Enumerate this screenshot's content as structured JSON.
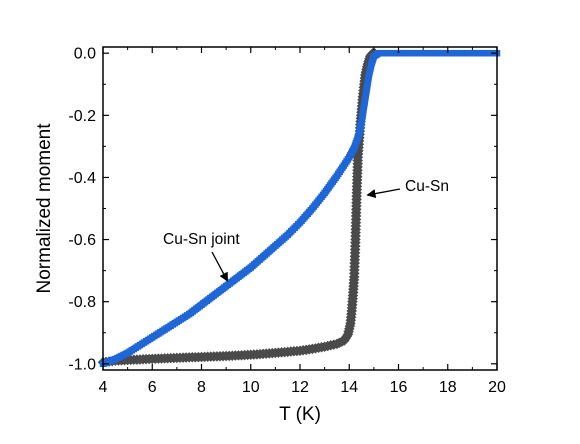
{
  "chart_data": {
    "type": "scatter",
    "xlabel": "T (K)",
    "ylabel": "Normalized moment",
    "xlim": [
      4,
      20
    ],
    "ylim": [
      -1.02,
      0.02
    ],
    "x_ticks": [
      4,
      6,
      8,
      10,
      12,
      14,
      16,
      18,
      20
    ],
    "y_ticks": [
      0.0,
      -0.2,
      -0.4,
      -0.6,
      -0.8,
      -1.0
    ],
    "y_tick_labels": [
      "0.0",
      "-0.2",
      "-0.4",
      "-0.6",
      "-0.8",
      "-1.0"
    ],
    "grid": false,
    "legend": "none",
    "series": [
      {
        "name": "Cu-Sn joint",
        "color": "#1f66d6",
        "marker": "square",
        "points": [
          [
            4.0,
            -1.0
          ],
          [
            4.5,
            -0.985
          ],
          [
            5.0,
            -0.965
          ],
          [
            5.5,
            -0.94
          ],
          [
            6.0,
            -0.915
          ],
          [
            6.5,
            -0.89
          ],
          [
            7.0,
            -0.865
          ],
          [
            7.5,
            -0.84
          ],
          [
            8.0,
            -0.81
          ],
          [
            8.5,
            -0.78
          ],
          [
            9.0,
            -0.75
          ],
          [
            9.5,
            -0.72
          ],
          [
            10.0,
            -0.69
          ],
          [
            10.5,
            -0.655
          ],
          [
            11.0,
            -0.62
          ],
          [
            11.5,
            -0.585
          ],
          [
            12.0,
            -0.545
          ],
          [
            12.5,
            -0.5
          ],
          [
            13.0,
            -0.45
          ],
          [
            13.5,
            -0.395
          ],
          [
            14.0,
            -0.335
          ],
          [
            14.2,
            -0.305
          ],
          [
            14.4,
            -0.26
          ],
          [
            14.5,
            -0.22
          ],
          [
            14.6,
            -0.17
          ],
          [
            14.7,
            -0.12
          ],
          [
            14.8,
            -0.07
          ],
          [
            14.9,
            -0.035
          ],
          [
            15.0,
            -0.01
          ],
          [
            15.2,
            0.0
          ],
          [
            15.5,
            0.0
          ],
          [
            16.0,
            0.0
          ],
          [
            17.0,
            0.0
          ],
          [
            18.0,
            0.0
          ],
          [
            19.0,
            0.0
          ],
          [
            20.0,
            0.0
          ]
        ]
      },
      {
        "name": "Cu-Sn",
        "color": "#4a4a4a",
        "marker": "diamond",
        "points": [
          [
            4.0,
            -0.995
          ],
          [
            4.5,
            -0.99
          ],
          [
            5.0,
            -0.988
          ],
          [
            5.5,
            -0.986
          ],
          [
            6.0,
            -0.984
          ],
          [
            7.0,
            -0.981
          ],
          [
            8.0,
            -0.978
          ],
          [
            9.0,
            -0.975
          ],
          [
            10.0,
            -0.971
          ],
          [
            11.0,
            -0.965
          ],
          [
            12.0,
            -0.958
          ],
          [
            12.5,
            -0.952
          ],
          [
            13.0,
            -0.945
          ],
          [
            13.5,
            -0.936
          ],
          [
            13.8,
            -0.925
          ],
          [
            13.95,
            -0.905
          ],
          [
            14.05,
            -0.87
          ],
          [
            14.1,
            -0.83
          ],
          [
            14.15,
            -0.78
          ],
          [
            14.2,
            -0.72
          ],
          [
            14.25,
            -0.61
          ],
          [
            14.3,
            -0.46
          ],
          [
            14.35,
            -0.335
          ],
          [
            14.45,
            -0.23
          ],
          [
            14.55,
            -0.14
          ],
          [
            14.65,
            -0.07
          ],
          [
            14.75,
            -0.035
          ],
          [
            14.85,
            -0.01
          ],
          [
            14.95,
            0.0
          ],
          [
            15.1,
            0.0
          ]
        ]
      }
    ],
    "annotations": [
      {
        "text": "Cu-Sn joint",
        "target": [
          9.3,
          -0.74
        ]
      },
      {
        "text": "Cu-Sn",
        "target": [
          14.45,
          -0.46
        ]
      }
    ]
  }
}
